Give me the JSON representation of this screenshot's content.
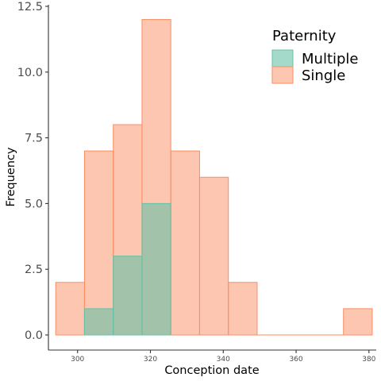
{
  "chart_data": {
    "type": "bar",
    "subtype": "overlapping-histogram",
    "title": "",
    "xlabel": "Conception date",
    "ylabel": "Frequency",
    "bin_width": 7.9,
    "xlim": [
      292,
      382
    ],
    "ylim": [
      0,
      12.5
    ],
    "x_ticks": [
      300,
      320,
      340,
      360,
      380
    ],
    "y_ticks": [
      0.0,
      2.5,
      5.0,
      7.5,
      10.0,
      12.5
    ],
    "x_tick_labels": [
      "300",
      "320",
      "340",
      "360",
      "380"
    ],
    "y_tick_labels": [
      "0.0",
      "2.5",
      "5.0",
      "7.5",
      "10.0",
      "12.5"
    ],
    "bin_starts": [
      294.0,
      301.9,
      309.8,
      317.7,
      325.6,
      333.5,
      341.4,
      349.3,
      357.2,
      365.1,
      373.0
    ],
    "series": [
      {
        "name": "Multiple",
        "fill": "#66c2a5",
        "stroke": "#66c2a5",
        "values": [
          0,
          1,
          3,
          5,
          0,
          0,
          0,
          0,
          0,
          0,
          0
        ]
      },
      {
        "name": "Single",
        "fill": "#fc8d62",
        "stroke": "#fc8d62",
        "values": [
          2,
          7,
          8,
          12,
          7,
          6,
          2,
          0,
          0,
          0,
          1
        ]
      }
    ],
    "legend": {
      "title": "Paternity",
      "position": "top-right",
      "entries": [
        "Multiple",
        "Single"
      ]
    },
    "grid": false
  }
}
